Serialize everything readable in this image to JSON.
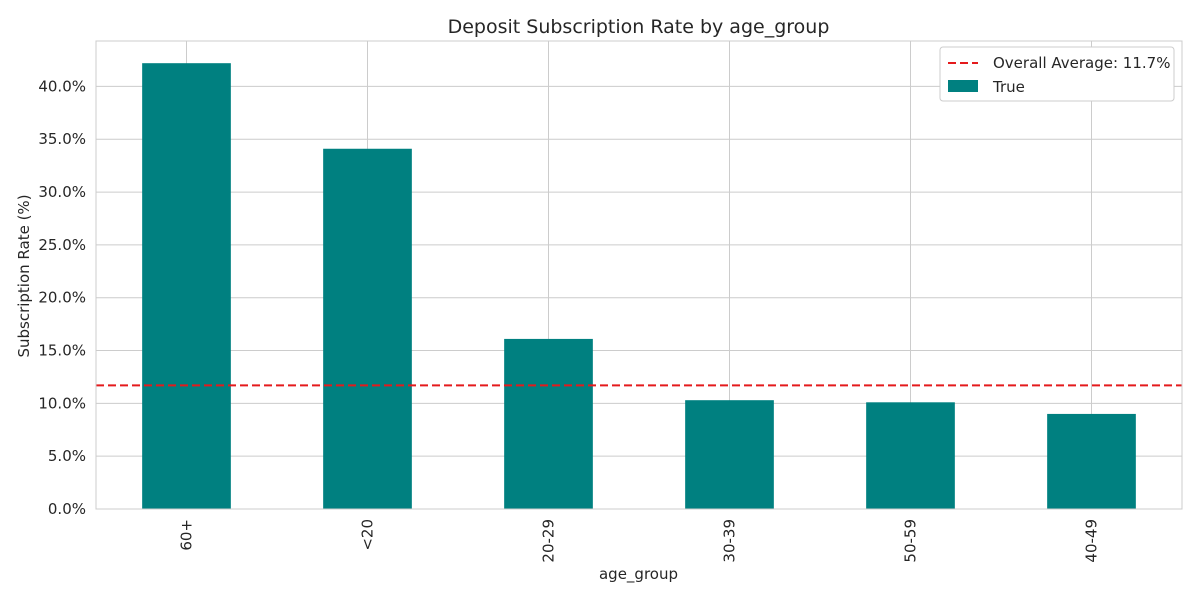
{
  "chart_data": {
    "type": "bar",
    "title": "Deposit Subscription Rate by age_group",
    "xlabel": "age_group",
    "ylabel": "Subscription Rate (%)",
    "categories": [
      "60+",
      "<20",
      "20-29",
      "30-39",
      "50-59",
      "40-49"
    ],
    "series": [
      {
        "name": "True",
        "values": [
          42.2,
          34.1,
          16.1,
          10.3,
          10.1,
          9.0
        ]
      }
    ],
    "reference_line": {
      "label": "Overall Average: 11.7%",
      "value": 11.7,
      "style": "dashed",
      "color": "#e41a1c"
    },
    "ylim": [
      0,
      44.3
    ],
    "yticks": [
      0,
      5,
      10,
      15,
      20,
      25,
      30,
      35,
      40
    ],
    "ytick_labels": [
      "0.0%",
      "5.0%",
      "10.0%",
      "15.0%",
      "20.0%",
      "25.0%",
      "30.0%",
      "35.0%",
      "40.0%"
    ],
    "bar_color": "#008080",
    "grid": true,
    "legend_position": "top-right"
  }
}
